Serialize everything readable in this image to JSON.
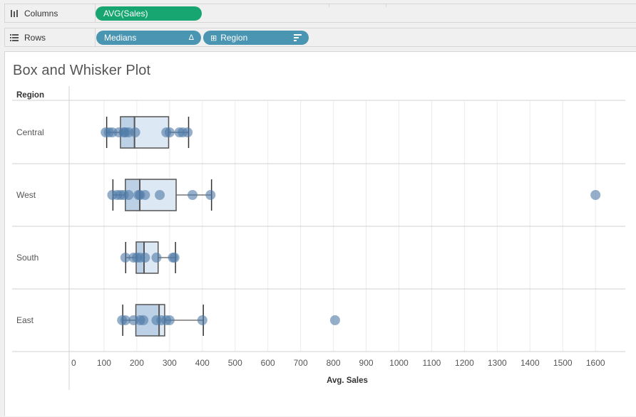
{
  "shelves": {
    "columns": {
      "label": "Columns",
      "pill": "AVG(Sales)"
    },
    "rows": {
      "label": "Rows",
      "pills": [
        "Medians",
        "Region"
      ],
      "pill_icons": [
        "Δ",
        "⊞"
      ]
    }
  },
  "sheet": {
    "title": "Box and Whisker Plot"
  },
  "colors": {
    "point": "#4e79a7",
    "box_upper": "#dde8f5",
    "box_lower": "#bcd1e6",
    "box_stroke": "#555555",
    "grid": "#ececec",
    "pill_green": "#17a672",
    "pill_blue": "#4a95b1"
  },
  "chart_data": {
    "type": "scatter",
    "subtype": "box-and-whisker",
    "title": "Box and Whisker Plot",
    "row_header": "Region",
    "xlabel": "Avg. Sales",
    "xlim": [
      0,
      1700
    ],
    "xticks": [
      0,
      100,
      200,
      300,
      400,
      500,
      600,
      700,
      800,
      900,
      1000,
      1100,
      1200,
      1300,
      1400,
      1500,
      1600
    ],
    "grid": true,
    "regions": [
      {
        "name": "Central",
        "points": [
          105,
          115,
          125,
          145,
          160,
          165,
          175,
          195,
          290,
          300,
          330,
          340,
          355
        ],
        "whisker_low": 108,
        "q1": 150,
        "median": 193,
        "q3": 297,
        "whisker_high": 358
      },
      {
        "name": "West",
        "points": [
          125,
          140,
          150,
          160,
          175,
          205,
          210,
          225,
          270,
          370,
          425,
          1600
        ],
        "whisker_low": 127,
        "q1": 165,
        "median": 209,
        "q3": 320,
        "whisker_high": 428
      },
      {
        "name": "South",
        "points": [
          165,
          190,
          200,
          210,
          225,
          260,
          310,
          315
        ],
        "whisker_low": 166,
        "q1": 198,
        "median": 222,
        "q3": 265,
        "whisker_high": 318
      },
      {
        "name": "East",
        "points": [
          155,
          165,
          190,
          210,
          220,
          260,
          275,
          290,
          300,
          400,
          805
        ],
        "whisker_low": 157,
        "q1": 197,
        "median": 268,
        "q3": 285,
        "whisker_high": 403
      }
    ]
  }
}
